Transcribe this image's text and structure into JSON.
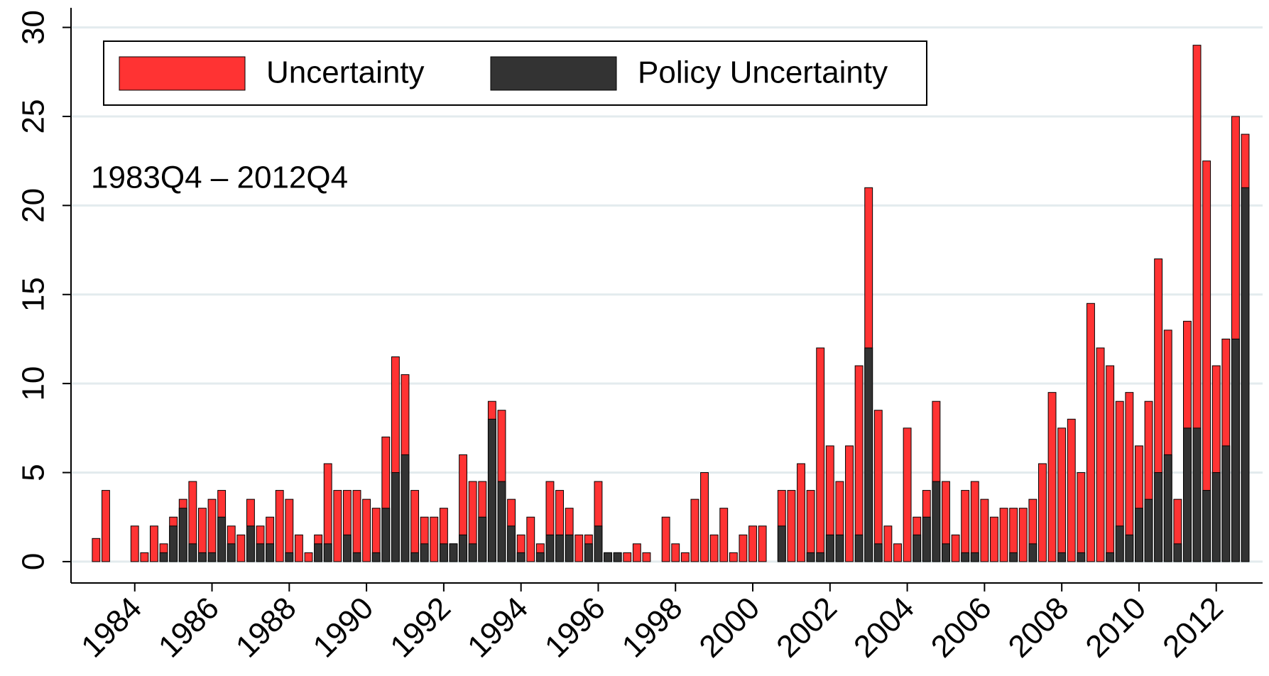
{
  "chart_data": {
    "type": "bar",
    "annotation": "1983Q4 – 2012Q4",
    "legend": "upper left",
    "grid": true,
    "x": [
      1983,
      1983.25,
      1983.5,
      1983.75,
      1984,
      1984.25,
      1984.5,
      1984.75,
      1985,
      1985.25,
      1985.5,
      1985.75,
      1986,
      1986.25,
      1986.5,
      1986.75,
      1987,
      1987.25,
      1987.5,
      1987.75,
      1988,
      1988.25,
      1988.5,
      1988.75,
      1989,
      1989.25,
      1989.5,
      1989.75,
      1990,
      1990.25,
      1990.5,
      1990.75,
      1991,
      1991.25,
      1991.5,
      1991.75,
      1992,
      1992.25,
      1992.5,
      1992.75,
      1993,
      1993.25,
      1993.5,
      1993.75,
      1994,
      1994.25,
      1994.5,
      1994.75,
      1995,
      1995.25,
      1995.5,
      1995.75,
      1996,
      1996.25,
      1996.5,
      1996.75,
      1997,
      1997.25,
      1997.5,
      1997.75,
      1998,
      1998.25,
      1998.5,
      1998.75,
      1999,
      1999.25,
      1999.5,
      1999.75,
      2000,
      2000.25,
      2000.5,
      2000.75,
      2001,
      2001.25,
      2001.5,
      2001.75,
      2002,
      2002.25,
      2002.5,
      2002.75,
      2003,
      2003.25,
      2003.5,
      2003.75,
      2004,
      2004.25,
      2004.5,
      2004.75,
      2005,
      2005.25,
      2005.5,
      2005.75,
      2006,
      2006.25,
      2006.5,
      2006.75,
      2007,
      2007.25,
      2007.5,
      2007.75,
      2008,
      2008.25,
      2008.5,
      2008.75,
      2009,
      2009.25,
      2009.5,
      2009.75,
      2010,
      2010.25,
      2010.5,
      2010.75,
      2011,
      2011.25,
      2011.5,
      2011.75,
      2012,
      2012.25,
      2012.5,
      2012.75
    ],
    "series": [
      {
        "name": "Uncertainty",
        "color": "#ff3333",
        "values": [
          1.3,
          4,
          0,
          0,
          2,
          0.5,
          2,
          1,
          2.5,
          3.5,
          4.5,
          3,
          3.5,
          4,
          2,
          1.5,
          3.5,
          2,
          2.5,
          4,
          3.5,
          1.5,
          0.5,
          1.5,
          5.5,
          4,
          4,
          4,
          3.5,
          3,
          7,
          11.5,
          10.5,
          4,
          2.5,
          2.5,
          3,
          1,
          6,
          4.5,
          4.5,
          9,
          8.5,
          3.5,
          1.5,
          2.5,
          1,
          4.5,
          4,
          3,
          1.5,
          1.5,
          4.5,
          0.5,
          0.5,
          0.5,
          1,
          0.5,
          0,
          2.5,
          1,
          0.5,
          3.5,
          5,
          1.5,
          3,
          0.5,
          1.5,
          2,
          2,
          0,
          4,
          4,
          5.5,
          4,
          12,
          6.5,
          4.5,
          6.5,
          11,
          21,
          8.5,
          2,
          1,
          7.5,
          2.5,
          4,
          9,
          4.5,
          1.5,
          4,
          4.5,
          3.5,
          2.5,
          3,
          3,
          3,
          3.5,
          5.5,
          9.5,
          7.5,
          8,
          5,
          14.5,
          12,
          11,
          9,
          9.5,
          6.5,
          9,
          17,
          13,
          3.5,
          13.5,
          29,
          22.5,
          11,
          12.5,
          25,
          24
        ]
      },
      {
        "name": "Policy Uncertainty",
        "color": "#333333",
        "values": [
          0,
          0,
          0,
          0,
          0,
          0,
          0,
          0.5,
          2,
          3,
          1,
          0.5,
          0.5,
          2.5,
          1,
          0,
          2,
          1,
          1,
          0,
          0.5,
          0,
          0,
          1,
          1,
          0,
          1.5,
          0.5,
          0,
          0.5,
          3,
          5,
          6,
          0.5,
          1,
          0,
          1,
          1,
          1.5,
          1,
          2.5,
          8,
          4.5,
          2,
          0.5,
          0,
          0.5,
          1.5,
          1.5,
          1.5,
          0,
          1,
          2,
          0.5,
          0.5,
          0,
          0,
          0,
          0,
          0,
          0,
          0,
          0,
          0,
          0,
          0,
          0,
          0,
          0,
          0,
          0,
          2,
          0,
          0,
          0.5,
          0.5,
          1.5,
          1.5,
          0,
          1.5,
          12,
          1,
          0,
          0,
          0,
          1.5,
          2.5,
          4.5,
          1,
          0,
          0.5,
          0.5,
          0,
          0,
          0,
          0.5,
          0,
          1,
          0,
          0,
          0.5,
          0,
          0.5,
          0,
          0,
          0.5,
          2,
          1.5,
          3,
          3.5,
          5,
          6,
          1,
          7.5,
          7.5,
          4,
          5,
          6.5,
          12.5,
          21
        ]
      }
    ],
    "xlim": [
      1982.35,
      2013.2
    ],
    "xticks": [
      1984,
      1986,
      1988,
      1990,
      1992,
      1994,
      1996,
      1998,
      2000,
      2002,
      2004,
      2006,
      2008,
      2010,
      2012
    ],
    "ylim": [
      -1.2,
      31.1
    ],
    "yticks": [
      0,
      5,
      10,
      15,
      20,
      25,
      30
    ]
  }
}
